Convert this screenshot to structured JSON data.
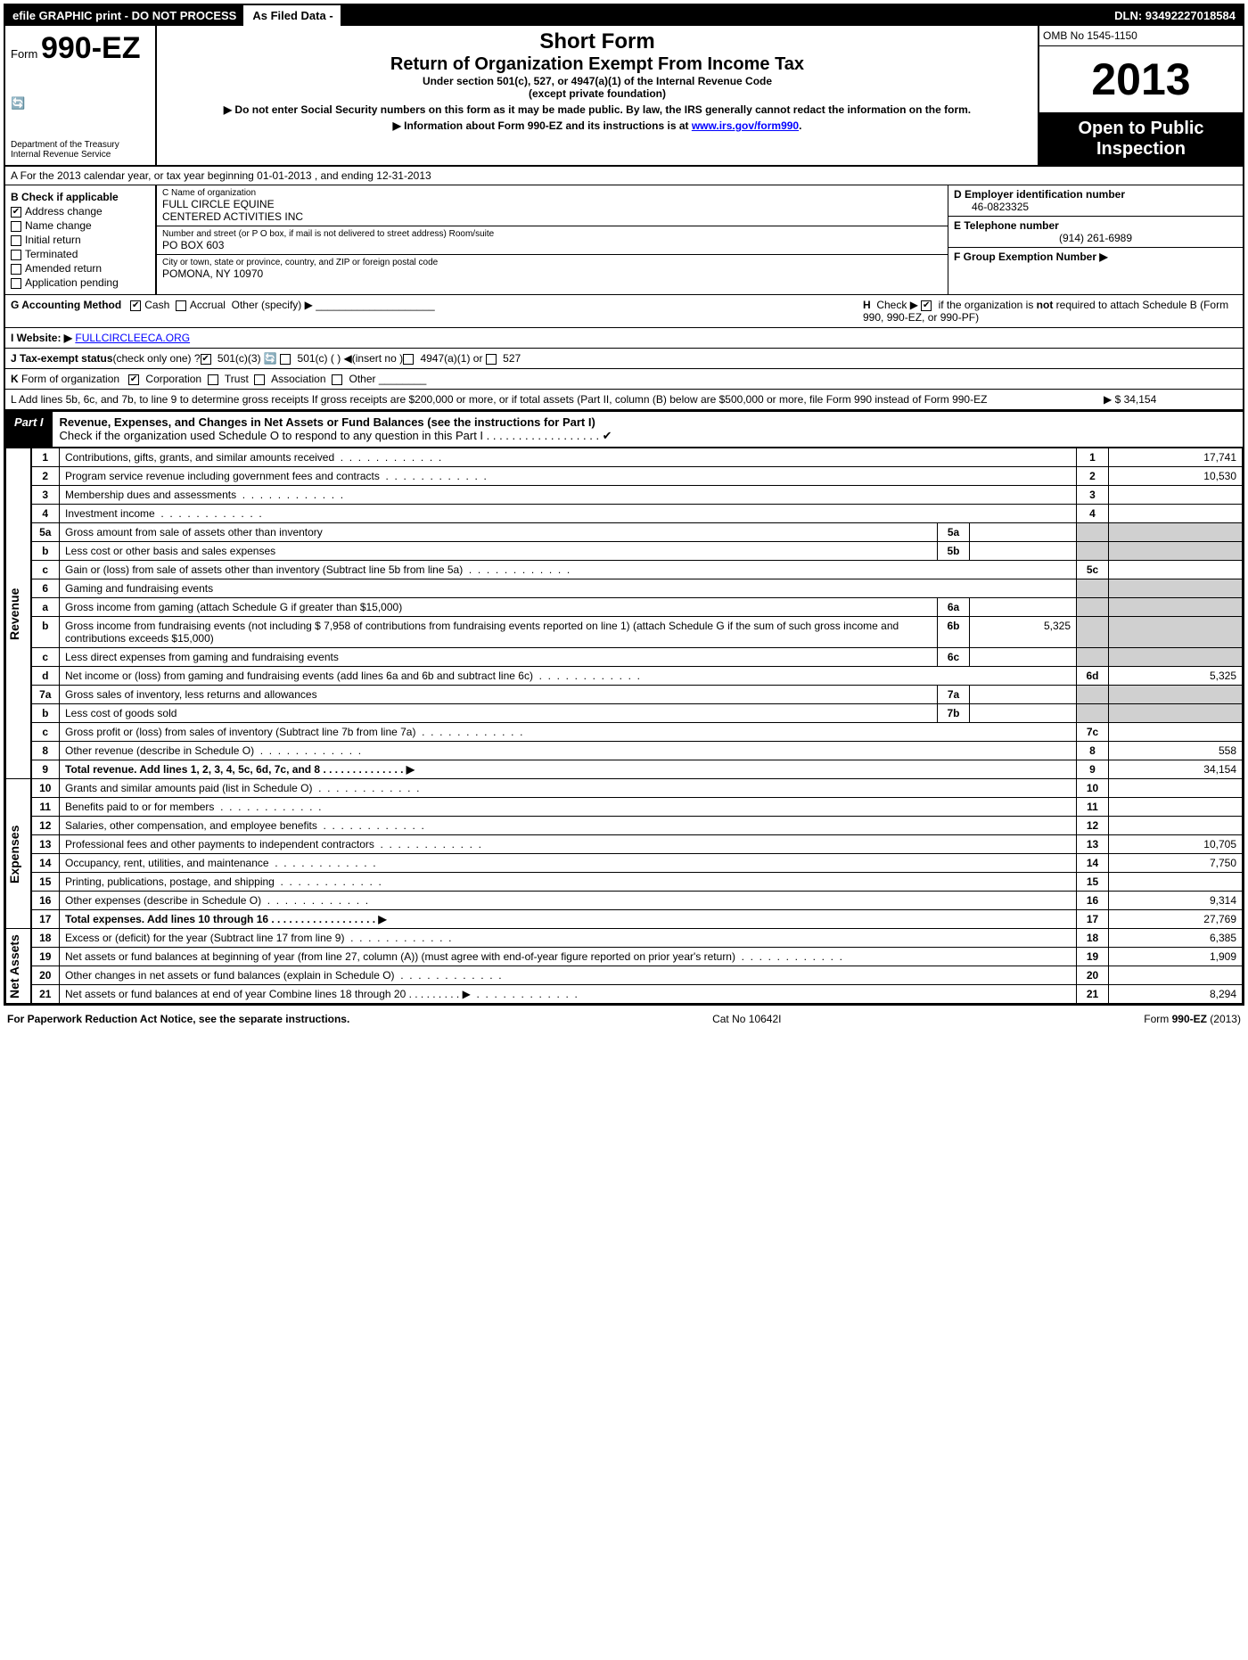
{
  "topbar": {
    "efile": "efile GRAPHIC print - DO NOT PROCESS",
    "asfiled": "As Filed Data -",
    "dln": "DLN: 93492227018584"
  },
  "header": {
    "form_prefix": "Form",
    "form_no": "990-EZ",
    "dept1": "Department of the Treasury",
    "dept2": "Internal Revenue Service",
    "short": "Short Form",
    "title": "Return of Organization Exempt From Income Tax",
    "sub1": "Under section 501(c), 527, or 4947(a)(1) of the Internal Revenue Code",
    "sub2": "(except private foundation)",
    "note1": "▶ Do not enter Social Security numbers on this form as it may be made public. By law, the IRS generally cannot redact the information on the form.",
    "note2_pre": "▶ Information about Form 990-EZ and its instructions is at ",
    "note2_link": "www.irs.gov/form990",
    "omb": "OMB No 1545-1150",
    "year": "2013",
    "open1": "Open to Public",
    "open2": "Inspection"
  },
  "rowA": "A  For the 2013 calendar year, or tax year beginning 01-01-2013             , and ending 12-31-2013",
  "colB": {
    "title": "B  Check if applicable",
    "items": [
      {
        "lbl": "Address change",
        "ck": "✔"
      },
      {
        "lbl": "Name change",
        "ck": ""
      },
      {
        "lbl": "Initial return",
        "ck": ""
      },
      {
        "lbl": "Terminated",
        "ck": ""
      },
      {
        "lbl": "Amended return",
        "ck": ""
      },
      {
        "lbl": "Application pending",
        "ck": ""
      }
    ]
  },
  "colC": {
    "name_lbl": "C Name of organization",
    "name1": "FULL CIRCLE EQUINE",
    "name2": "CENTERED ACTIVITIES INC",
    "street_lbl": "Number and street (or P O box, if mail is not delivered to street address) Room/suite",
    "street": "PO BOX 603",
    "city_lbl": "City or town, state or province, country, and ZIP or foreign postal code",
    "city": "POMONA, NY  10970"
  },
  "colD": {
    "ein_lbl": "D Employer identification number",
    "ein": "46-0823325",
    "tel_lbl": "E Telephone number",
    "tel": "(914) 261-6989",
    "grp_lbl": "F Group Exemption Number   ▶"
  },
  "secG": {
    "g": "G Accounting Method",
    "cash": "Cash",
    "accr": "Accrual",
    "oth": "Other (specify) ▶",
    "h": "H  Check ▶        if the organization is not required to attach Schedule B (Form 990, 990-EZ, or 990-PF)",
    "i_lbl": "I Website: ▶",
    "i_val": "FULLCIRCLEECA.ORG",
    "j": "J Tax-exempt status (check only one) ?     501(c)(3)       501(c) (  ) ◀(insert no )     4947(a)(1) or      527",
    "k": "K Form of organization        Corporation      Trust      Association      Other",
    "l": "L Add lines 5b, 6c, and 7b, to line 9 to determine gross receipts  If gross receipts are $200,000 or more, or if total assets (Part II, column (B) below are $500,000 or more, file Form 990 instead of Form 990-EZ",
    "l_amt": "▶ $ 34,154"
  },
  "part1": {
    "tab": "Part I",
    "title": "Revenue, Expenses, and Changes in Net Assets or Fund Balances (see the instructions for Part I)",
    "check": "Check if the organization used Schedule O to respond to any question in this Part I  .  .  .  .  .  .  .  .  .  .  .  .  .  .  .  .  .  . ✔"
  },
  "sections": {
    "rev": "Revenue",
    "exp": "Expenses",
    "na": "Net Assets"
  },
  "lines": [
    {
      "n": "1",
      "d": "Contributions, gifts, grants, and similar amounts received",
      "num": "1",
      "amt": "17,741"
    },
    {
      "n": "2",
      "d": "Program service revenue including government fees and contracts",
      "num": "2",
      "amt": "10,530"
    },
    {
      "n": "3",
      "d": "Membership dues and assessments",
      "num": "3",
      "amt": ""
    },
    {
      "n": "4",
      "d": "Investment income",
      "num": "4",
      "amt": ""
    },
    {
      "n": "5a",
      "d": "Gross amount from sale of assets other than inventory",
      "in": "5a",
      "iamt": ""
    },
    {
      "n": "b",
      "d": "Less cost or other basis and sales expenses",
      "in": "5b",
      "iamt": ""
    },
    {
      "n": "c",
      "d": "Gain or (loss) from sale of assets other than inventory (Subtract line 5b from line 5a)",
      "num": "5c",
      "amt": ""
    },
    {
      "n": "6",
      "d": "Gaming and fundraising events",
      "shade": true
    },
    {
      "n": "a",
      "d": "Gross income from gaming (attach Schedule G if greater than $15,000)",
      "in": "6a",
      "iamt": ""
    },
    {
      "n": "b",
      "d": "Gross income from fundraising events (not including $  7,958          of contributions from fundraising events reported on line 1) (attach Schedule G if the sum of such gross income and contributions exceeds $15,000)",
      "in": "6b",
      "iamt": "5,325"
    },
    {
      "n": "c",
      "d": "Less  direct expenses from gaming and fundraising events",
      "in": "6c",
      "iamt": ""
    },
    {
      "n": "d",
      "d": "Net income or (loss) from gaming and fundraising events (add lines 6a and 6b and subtract line 6c)",
      "num": "6d",
      "amt": "5,325"
    },
    {
      "n": "7a",
      "d": "Gross sales of inventory, less returns and allowances",
      "in": "7a",
      "iamt": ""
    },
    {
      "n": "b",
      "d": "Less  cost of goods sold",
      "in": "7b",
      "iamt": ""
    },
    {
      "n": "c",
      "d": "Gross profit or (loss) from sales of inventory (Subtract line 7b from line 7a)",
      "num": "7c",
      "amt": ""
    },
    {
      "n": "8",
      "d": "Other revenue (describe in Schedule O)",
      "num": "8",
      "amt": "558"
    },
    {
      "n": "9",
      "d": "Total revenue. Add lines 1, 2, 3, 4, 5c, 6d, 7c, and 8    .  .  .  .  .  .  .  .  .  .  .  .  .  .   ▶",
      "num": "9",
      "amt": "34,154",
      "bold": true
    }
  ],
  "exp_lines": [
    {
      "n": "10",
      "d": "Grants and similar amounts paid (list in Schedule O)",
      "num": "10",
      "amt": ""
    },
    {
      "n": "11",
      "d": "Benefits paid to or for members",
      "num": "11",
      "amt": ""
    },
    {
      "n": "12",
      "d": "Salaries, other compensation, and employee benefits",
      "num": "12",
      "amt": ""
    },
    {
      "n": "13",
      "d": "Professional fees and other payments to independent contractors",
      "num": "13",
      "amt": "10,705"
    },
    {
      "n": "14",
      "d": "Occupancy, rent, utilities, and maintenance",
      "num": "14",
      "amt": "7,750"
    },
    {
      "n": "15",
      "d": "Printing, publications, postage, and shipping",
      "num": "15",
      "amt": ""
    },
    {
      "n": "16",
      "d": "Other expenses (describe in Schedule O)",
      "num": "16",
      "amt": "9,314"
    },
    {
      "n": "17",
      "d": "Total expenses. Add lines 10 through 16    .  .  .  .  .  .  .  .  .  .  .  .  .  .  .  .  .  .   ▶",
      "num": "17",
      "amt": "27,769",
      "bold": true
    }
  ],
  "na_lines": [
    {
      "n": "18",
      "d": "Excess or (deficit) for the year (Subtract line 17 from line 9)",
      "num": "18",
      "amt": "6,385"
    },
    {
      "n": "19",
      "d": "Net assets or fund balances at beginning of year (from line 27, column (A)) (must agree with end-of-year figure reported on prior year's return)",
      "num": "19",
      "amt": "1,909"
    },
    {
      "n": "20",
      "d": "Other changes in net assets or fund balances (explain in Schedule O)",
      "num": "20",
      "amt": ""
    },
    {
      "n": "21",
      "d": "Net assets or fund balances at end of year  Combine lines 18 through 20    .  .  .  .  .  .  .  .  . ▶",
      "num": "21",
      "amt": "8,294"
    }
  ],
  "footer": {
    "l": "For Paperwork Reduction Act Notice, see the separate instructions.",
    "c": "Cat No 10642I",
    "r": "Form 990-EZ (2013)"
  }
}
